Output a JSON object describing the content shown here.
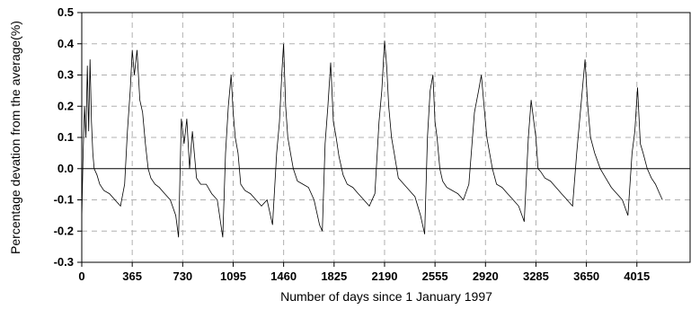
{
  "chart_data": {
    "type": "line",
    "xlabel": "Number of days since 1 January 1997",
    "ylabel": "Percentage devation from the average(%)",
    "xlim": [
      0,
      4400
    ],
    "ylim": [
      -0.3,
      0.5
    ],
    "x_ticks": [
      0,
      365,
      730,
      1095,
      1460,
      1825,
      2190,
      2555,
      2920,
      3285,
      3650,
      4015
    ],
    "x_tick_labels": [
      "0",
      "365",
      "730",
      "1095",
      "1460",
      "1825",
      "2190",
      "2555",
      "2920",
      "3285",
      "3650",
      "4015"
    ],
    "y_ticks": [
      -0.3,
      -0.2,
      -0.1,
      0.0,
      0.1,
      0.2,
      0.3,
      0.4,
      0.5
    ],
    "y_tick_labels": [
      "-0.3",
      "-0.2",
      "-0.1",
      "0.0",
      "0.1",
      "0.2",
      "0.3",
      "0.4",
      "0.5"
    ],
    "grid": true,
    "zero_line": true,
    "color": "#000000",
    "series": [
      {
        "x": [
          0,
          10,
          20,
          30,
          40,
          50,
          60,
          70,
          80,
          90,
          110,
          130,
          160,
          200,
          240,
          280,
          310,
          330,
          350,
          365,
          380,
          400,
          420,
          440,
          460,
          480,
          500,
          530,
          560,
          600,
          640,
          680,
          700,
          720,
          740,
          760,
          780,
          800,
          830,
          860,
          900,
          940,
          980,
          1020,
          1040,
          1060,
          1080,
          1095,
          1110,
          1130,
          1150,
          1180,
          1220,
          1260,
          1300,
          1340,
          1380,
          1410,
          1430,
          1450,
          1460,
          1475,
          1490,
          1510,
          1530,
          1560,
          1600,
          1640,
          1680,
          1720,
          1740,
          1760,
          1780,
          1800,
          1820,
          1840,
          1860,
          1890,
          1920,
          1960,
          2000,
          2040,
          2080,
          2120,
          2150,
          2170,
          2190,
          2205,
          2220,
          2240,
          2260,
          2290,
          2330,
          2370,
          2410,
          2450,
          2480,
          2500,
          2520,
          2540,
          2555,
          2570,
          2590,
          2610,
          2640,
          2680,
          2720,
          2760,
          2800,
          2840,
          2870,
          2890,
          2910,
          2930,
          2950,
          2970,
          3000,
          3040,
          3080,
          3120,
          3160,
          3200,
          3230,
          3250,
          3270,
          3285,
          3300,
          3320,
          3350,
          3390,
          3430,
          3470,
          3510,
          3550,
          3580,
          3600,
          3620,
          3640,
          3660,
          3680,
          3710,
          3750,
          3790,
          3830,
          3870,
          3910,
          3950,
          3980,
          4000,
          4020,
          4040,
          4060,
          4090,
          4120,
          4150,
          4180,
          4200
        ],
        "y": [
          -0.16,
          0.05,
          0.2,
          0.1,
          0.33,
          0.12,
          0.35,
          0.15,
          0.05,
          0.0,
          -0.02,
          -0.05,
          -0.07,
          -0.08,
          -0.1,
          -0.12,
          -0.05,
          0.12,
          0.25,
          0.38,
          0.3,
          0.38,
          0.22,
          0.18,
          0.08,
          0.0,
          -0.03,
          -0.05,
          -0.06,
          -0.08,
          -0.1,
          -0.15,
          -0.22,
          0.16,
          0.08,
          0.16,
          0.0,
          0.12,
          -0.03,
          -0.05,
          -0.05,
          -0.08,
          -0.1,
          -0.22,
          0.05,
          0.2,
          0.3,
          0.18,
          0.1,
          0.05,
          -0.05,
          -0.07,
          -0.08,
          -0.1,
          -0.12,
          -0.1,
          -0.18,
          0.05,
          0.15,
          0.33,
          0.4,
          0.2,
          0.1,
          0.05,
          0.0,
          -0.04,
          -0.05,
          -0.06,
          -0.1,
          -0.18,
          -0.2,
          0.08,
          0.2,
          0.34,
          0.15,
          0.1,
          0.04,
          -0.02,
          -0.05,
          -0.06,
          -0.08,
          -0.1,
          -0.12,
          -0.08,
          0.15,
          0.25,
          0.41,
          0.33,
          0.2,
          0.1,
          0.05,
          -0.03,
          -0.05,
          -0.07,
          -0.09,
          -0.15,
          -0.21,
          0.1,
          0.25,
          0.3,
          0.15,
          0.1,
          0.0,
          -0.04,
          -0.06,
          -0.07,
          -0.08,
          -0.1,
          -0.05,
          0.18,
          0.25,
          0.3,
          0.2,
          0.1,
          0.05,
          0.0,
          -0.05,
          -0.06,
          -0.08,
          -0.1,
          -0.12,
          -0.17,
          0.1,
          0.22,
          0.15,
          0.1,
          0.0,
          -0.01,
          -0.03,
          -0.04,
          -0.06,
          -0.08,
          -0.1,
          -0.12,
          0.05,
          0.15,
          0.25,
          0.35,
          0.2,
          0.1,
          0.05,
          0.0,
          -0.03,
          -0.06,
          -0.08,
          -0.1,
          -0.15,
          0.05,
          0.12,
          0.26,
          0.08,
          0.05,
          0.0,
          -0.03,
          -0.05,
          -0.08,
          -0.1
        ]
      }
    ]
  }
}
